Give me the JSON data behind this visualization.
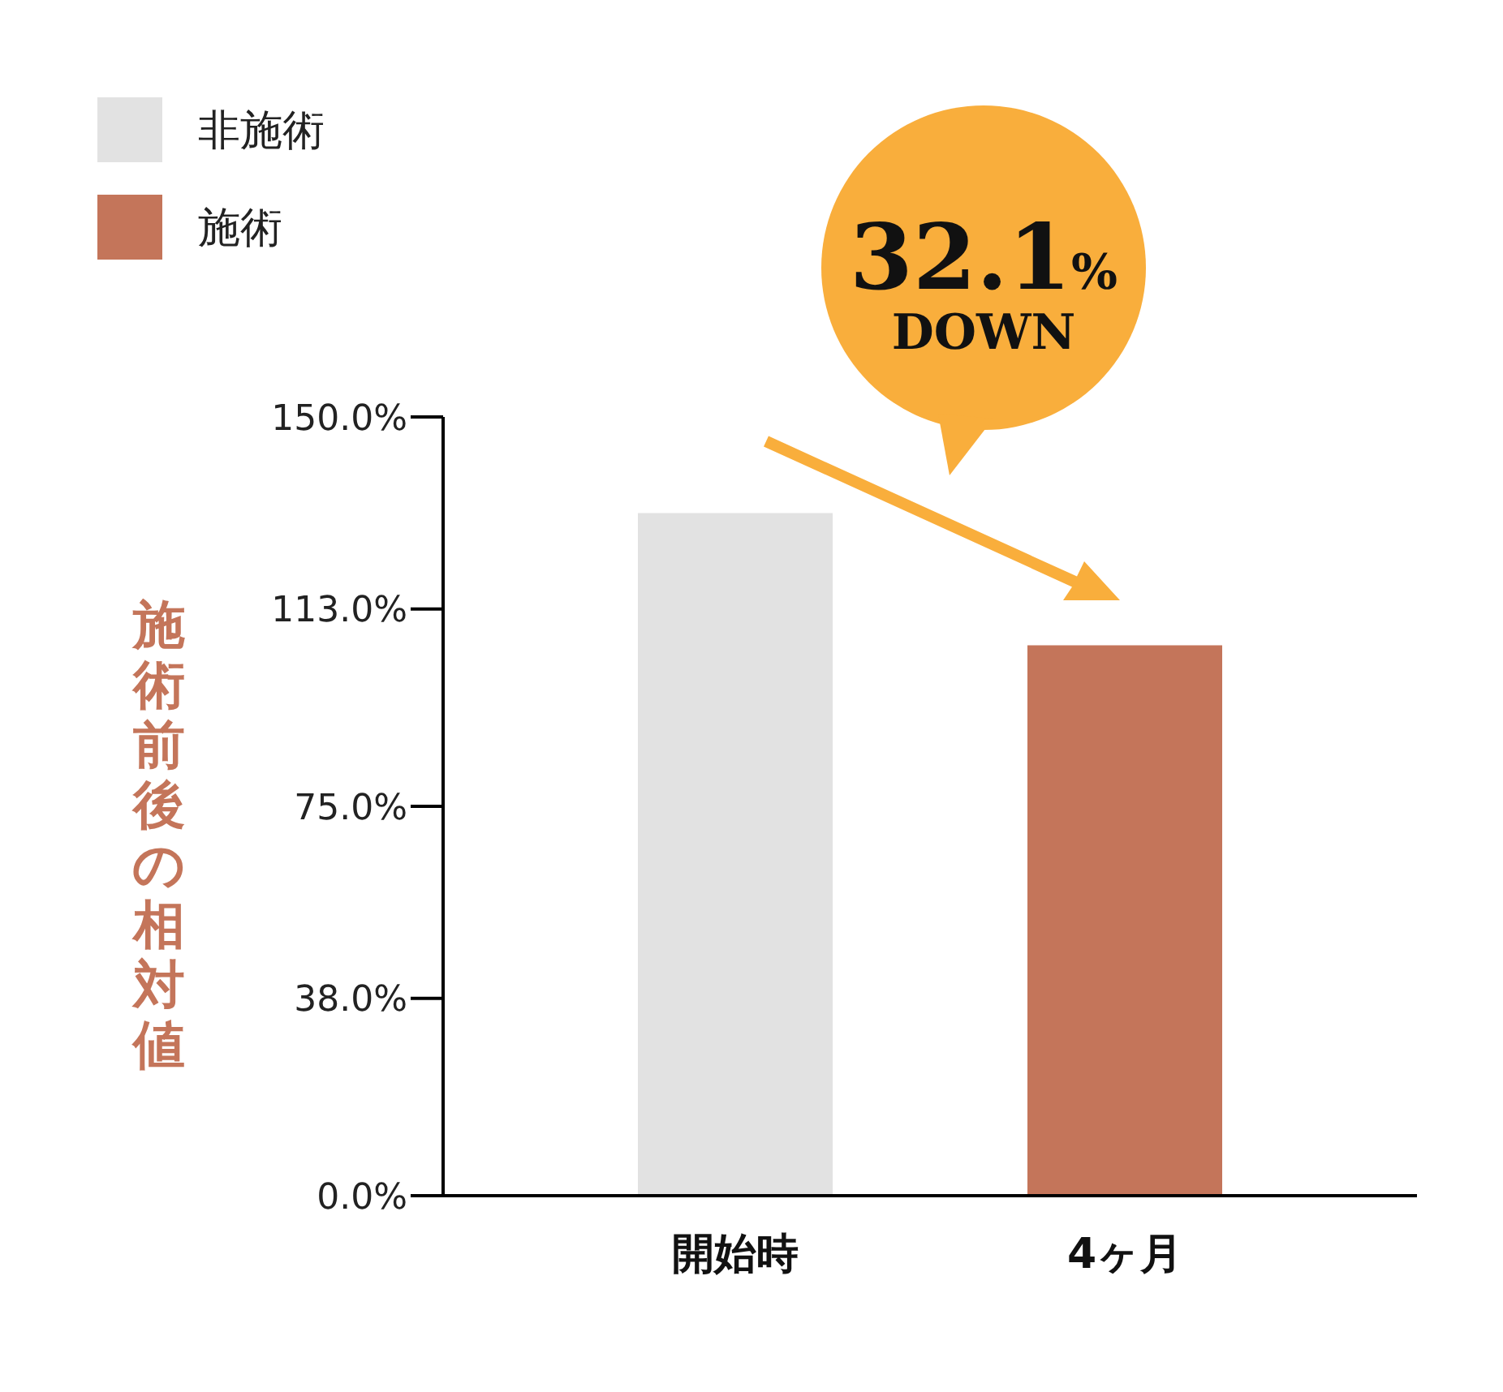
{
  "chart_data": {
    "type": "bar",
    "ylabel": "施術前後の相対値",
    "categories": [
      "開始時",
      "4ヶ月"
    ],
    "series": [
      {
        "name": "非施術",
        "color": "#e2e2e2",
        "values": [
          131.5,
          null
        ]
      },
      {
        "name": "施術",
        "color": "#c4755a",
        "values": [
          null,
          106
        ]
      }
    ],
    "stacked": true,
    "ylim": [
      0,
      150
    ],
    "yticks": [
      {
        "value": 0,
        "label": "0.0%"
      },
      {
        "value": 38,
        "label": "38.0%"
      },
      {
        "value": 75,
        "label": "75.0%"
      },
      {
        "value": 113,
        "label": "113.0%"
      },
      {
        "value": 150,
        "label": "150.0%"
      }
    ],
    "annotations": [
      "32.1% DOWN"
    ],
    "legend": "top left",
    "grid": false
  }
}
